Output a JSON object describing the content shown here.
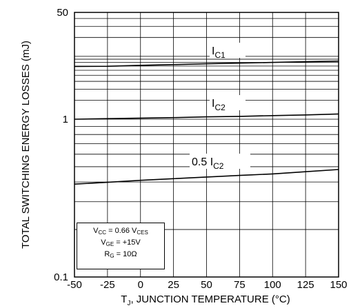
{
  "chart_data": {
    "type": "line",
    "scale_y": "log",
    "ylabel": "TOTAL SWITCHING ENERGY LOSSES (mJ)",
    "xlabel": {
      "main": "T",
      "sub": "J",
      "rest": ", JUNCTION TEMPERATURE (°C)"
    },
    "xlim": [
      -50,
      150
    ],
    "ylim": [
      0.1,
      50
    ],
    "x_ticks": [
      "-50",
      "-25",
      "0",
      "25",
      "50",
      "75",
      "100",
      "125",
      "150"
    ],
    "y_ticks": [
      "50",
      "1",
      "0.1"
    ],
    "grid": true,
    "series": [
      {
        "name": {
          "prefix": "",
          "main": "I",
          "sub": "C1"
        },
        "x": [
          -50,
          -25,
          0,
          25,
          50,
          75,
          100,
          125,
          150
        ],
        "y": [
          6.9,
          6.95,
          7.2,
          7.4,
          7.6,
          7.8,
          8.0,
          8.2,
          8.4
        ]
      },
      {
        "name": {
          "prefix": "",
          "main": "I",
          "sub": "C2"
        },
        "x": [
          -50,
          -25,
          0,
          25,
          50,
          75,
          100,
          125,
          150
        ],
        "y": [
          1.0,
          1.02,
          1.04,
          1.06,
          1.09,
          1.11,
          1.14,
          1.17,
          1.21
        ]
      },
      {
        "name": {
          "prefix": "0.5 ",
          "main": "I",
          "sub": "C2"
        },
        "x": [
          -50,
          -25,
          0,
          25,
          50,
          75,
          100,
          125,
          150
        ],
        "y": [
          0.388,
          0.398,
          0.41,
          0.42,
          0.43,
          0.44,
          0.45,
          0.465,
          0.48
        ]
      }
    ],
    "annotation": {
      "line1": {
        "a": "V",
        "a_sub": "CC",
        "b": " = 0.66 V",
        "b_sub": "CES"
      },
      "line2": {
        "a": "V",
        "a_sub": "GE",
        "b": " = +15V"
      },
      "line3": {
        "a": "R",
        "a_sub": "G",
        "b": " = 10Ω"
      }
    }
  }
}
